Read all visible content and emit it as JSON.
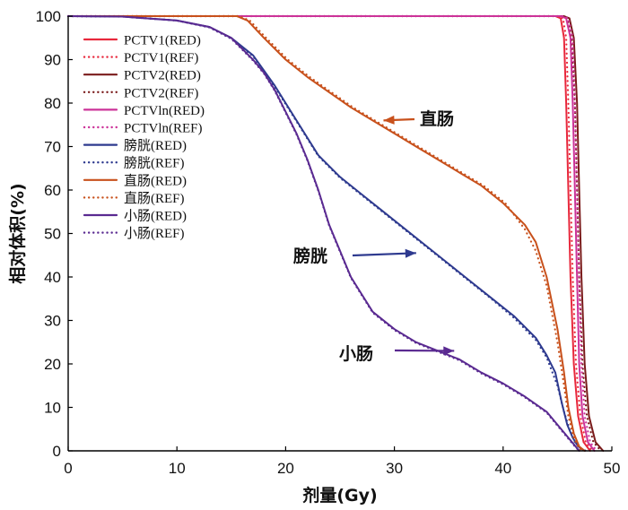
{
  "chart_data": {
    "type": "line",
    "xlabel": "剂量(Gy)",
    "ylabel": "相对体积(%)",
    "xlim": [
      0,
      50
    ],
    "ylim": [
      0,
      100
    ],
    "xticks": [
      0,
      10,
      20,
      30,
      40,
      50
    ],
    "yticks": [
      0,
      10,
      20,
      30,
      40,
      50,
      60,
      70,
      80,
      90,
      100
    ],
    "grid": false,
    "legend_position": "top-left",
    "series": [
      {
        "name": "PCTV1(RED)",
        "color": "#e8283c",
        "dash": "solid",
        "points": [
          [
            0,
            100
          ],
          [
            44.8,
            100
          ],
          [
            45.3,
            99.5
          ],
          [
            45.6,
            95
          ],
          [
            45.8,
            80
          ],
          [
            46.0,
            60
          ],
          [
            46.2,
            40
          ],
          [
            46.5,
            20
          ],
          [
            46.9,
            8
          ],
          [
            47.4,
            2
          ],
          [
            48.0,
            0
          ]
        ]
      },
      {
        "name": "PCTV1(REF)",
        "color": "#e8283c",
        "dash": "dotted",
        "points": [
          [
            0,
            100
          ],
          [
            45.0,
            100
          ],
          [
            45.5,
            99.5
          ],
          [
            45.8,
            95
          ],
          [
            46.0,
            80
          ],
          [
            46.2,
            60
          ],
          [
            46.4,
            40
          ],
          [
            46.7,
            20
          ],
          [
            47.1,
            8
          ],
          [
            47.6,
            2
          ],
          [
            48.2,
            0
          ]
        ]
      },
      {
        "name": "PCTV2(RED)",
        "color": "#7a1b1b",
        "dash": "solid",
        "points": [
          [
            0,
            100
          ],
          [
            45.6,
            100
          ],
          [
            46.1,
            99.5
          ],
          [
            46.5,
            95
          ],
          [
            46.8,
            80
          ],
          [
            47.0,
            60
          ],
          [
            47.2,
            40
          ],
          [
            47.5,
            20
          ],
          [
            47.9,
            8
          ],
          [
            48.5,
            2
          ],
          [
            49.2,
            0
          ]
        ]
      },
      {
        "name": "PCTV2(REF)",
        "color": "#7a1b1b",
        "dash": "dotted",
        "points": [
          [
            0,
            100
          ],
          [
            45.4,
            100
          ],
          [
            45.9,
            99.5
          ],
          [
            46.3,
            95
          ],
          [
            46.6,
            80
          ],
          [
            46.8,
            60
          ],
          [
            47.0,
            40
          ],
          [
            47.3,
            20
          ],
          [
            47.7,
            8
          ],
          [
            48.3,
            2
          ],
          [
            49.0,
            0
          ]
        ]
      },
      {
        "name": "PCTVln(RED)",
        "color": "#cc3399",
        "dash": "solid",
        "points": [
          [
            0,
            100
          ],
          [
            45.3,
            100
          ],
          [
            45.8,
            99.5
          ],
          [
            46.2,
            95
          ],
          [
            46.4,
            80
          ],
          [
            46.6,
            60
          ],
          [
            46.8,
            40
          ],
          [
            47.0,
            20
          ],
          [
            47.3,
            8
          ],
          [
            47.8,
            2
          ],
          [
            48.4,
            0
          ]
        ]
      },
      {
        "name": "PCTVln(REF)",
        "color": "#cc3399",
        "dash": "dotted",
        "points": [
          [
            0,
            100
          ],
          [
            45.5,
            100
          ],
          [
            46.0,
            99.5
          ],
          [
            46.4,
            95
          ],
          [
            46.6,
            80
          ],
          [
            46.8,
            60
          ],
          [
            47.0,
            40
          ],
          [
            47.2,
            20
          ],
          [
            47.5,
            8
          ],
          [
            48.0,
            2
          ],
          [
            48.6,
            0
          ]
        ]
      },
      {
        "name": "膀胱(RED)",
        "color": "#2e3a8f",
        "dash": "solid",
        "points": [
          [
            0,
            100
          ],
          [
            5,
            99.9
          ],
          [
            10,
            99
          ],
          [
            13,
            97.5
          ],
          [
            15,
            95
          ],
          [
            17,
            91
          ],
          [
            19,
            84
          ],
          [
            21,
            76
          ],
          [
            23,
            68
          ],
          [
            25,
            63
          ],
          [
            27,
            59
          ],
          [
            29,
            55
          ],
          [
            31,
            51
          ],
          [
            33,
            47
          ],
          [
            35,
            43
          ],
          [
            37,
            39
          ],
          [
            39,
            35
          ],
          [
            41,
            31
          ],
          [
            43,
            26
          ],
          [
            44,
            22
          ],
          [
            44.8,
            18
          ],
          [
            45.4,
            11
          ],
          [
            45.9,
            6
          ],
          [
            46.4,
            3
          ],
          [
            46.9,
            1
          ],
          [
            47.5,
            0
          ]
        ]
      },
      {
        "name": "膀胱(REF)",
        "color": "#2e3a8f",
        "dash": "dotted",
        "points": [
          [
            0,
            100
          ],
          [
            5,
            99.9
          ],
          [
            10,
            99
          ],
          [
            13,
            97.4
          ],
          [
            15,
            94.8
          ],
          [
            17,
            90.8
          ],
          [
            19,
            83.7
          ],
          [
            21,
            75.8
          ],
          [
            23,
            67.8
          ],
          [
            25,
            62.8
          ],
          [
            27,
            58.8
          ],
          [
            29,
            54.8
          ],
          [
            31,
            50.8
          ],
          [
            33,
            46.8
          ],
          [
            35,
            42.8
          ],
          [
            37,
            38.8
          ],
          [
            39,
            34.8
          ],
          [
            41,
            30.6
          ],
          [
            43,
            25.5
          ],
          [
            44,
            21.5
          ],
          [
            45,
            15
          ],
          [
            45.6,
            9
          ],
          [
            46.1,
            5
          ],
          [
            46.6,
            2
          ],
          [
            47.1,
            0.6
          ],
          [
            47.6,
            0
          ]
        ]
      },
      {
        "name": "直肠(RED)",
        "color": "#c8511c",
        "dash": "solid",
        "points": [
          [
            0,
            100
          ],
          [
            15.5,
            100
          ],
          [
            16.5,
            99
          ],
          [
            18,
            95
          ],
          [
            20,
            90
          ],
          [
            22,
            86
          ],
          [
            24,
            82.5
          ],
          [
            26,
            79
          ],
          [
            28,
            76
          ],
          [
            30,
            73
          ],
          [
            32,
            70
          ],
          [
            34,
            67
          ],
          [
            36,
            64
          ],
          [
            38,
            61
          ],
          [
            40,
            57
          ],
          [
            42,
            52
          ],
          [
            43,
            48
          ],
          [
            44,
            40
          ],
          [
            45,
            28
          ],
          [
            45.6,
            18
          ],
          [
            46,
            10
          ],
          [
            46.5,
            4
          ],
          [
            47,
            1
          ],
          [
            47.5,
            0
          ]
        ]
      },
      {
        "name": "直肠(REF)",
        "color": "#c8511c",
        "dash": "dotted",
        "points": [
          [
            0,
            100
          ],
          [
            15.7,
            100
          ],
          [
            16.7,
            99
          ],
          [
            18.2,
            95
          ],
          [
            20.2,
            90
          ],
          [
            22.2,
            86
          ],
          [
            24.2,
            82.5
          ],
          [
            26.2,
            79
          ],
          [
            28.2,
            76
          ],
          [
            30.2,
            73
          ],
          [
            32.2,
            70
          ],
          [
            34.2,
            67
          ],
          [
            36.2,
            64
          ],
          [
            38.2,
            61
          ],
          [
            40.2,
            57
          ],
          [
            42,
            51
          ],
          [
            43,
            46
          ],
          [
            44,
            38
          ],
          [
            45,
            25
          ],
          [
            45.6,
            15
          ],
          [
            46,
            8
          ],
          [
            46.5,
            3
          ],
          [
            47,
            0.5
          ],
          [
            47.4,
            0
          ]
        ]
      },
      {
        "name": "小肠(RED)",
        "color": "#5a2a91",
        "dash": "solid",
        "points": [
          [
            0,
            100
          ],
          [
            5,
            99.9
          ],
          [
            10,
            99
          ],
          [
            13,
            97.5
          ],
          [
            15,
            95
          ],
          [
            17,
            90
          ],
          [
            18,
            87
          ],
          [
            19,
            83
          ],
          [
            20,
            78
          ],
          [
            21,
            73
          ],
          [
            22,
            67
          ],
          [
            23,
            60
          ],
          [
            24,
            52
          ],
          [
            25,
            46
          ],
          [
            26,
            40
          ],
          [
            27,
            36
          ],
          [
            28,
            32
          ],
          [
            30,
            28
          ],
          [
            32,
            25
          ],
          [
            34,
            23
          ],
          [
            36,
            21
          ],
          [
            38,
            18
          ],
          [
            40,
            15.5
          ],
          [
            42,
            12.5
          ],
          [
            44,
            9
          ],
          [
            45,
            6
          ],
          [
            46,
            3
          ],
          [
            46.5,
            1.5
          ],
          [
            47,
            0
          ]
        ]
      },
      {
        "name": "小肠(REF)",
        "color": "#5a2a91",
        "dash": "dotted",
        "points": [
          [
            0,
            100
          ],
          [
            5,
            99.9
          ],
          [
            10,
            99
          ],
          [
            13,
            97.4
          ],
          [
            15,
            94.8
          ],
          [
            17,
            89.8
          ],
          [
            18,
            86.8
          ],
          [
            19,
            82.8
          ],
          [
            20,
            77.8
          ],
          [
            21,
            72.8
          ],
          [
            22,
            66.8
          ],
          [
            23,
            59.8
          ],
          [
            24,
            51.8
          ],
          [
            25,
            45.8
          ],
          [
            26,
            39.8
          ],
          [
            27,
            35.8
          ],
          [
            28,
            31.8
          ],
          [
            30,
            27.8
          ],
          [
            32,
            24.8
          ],
          [
            34,
            22.8
          ],
          [
            36,
            20.8
          ],
          [
            38,
            17.8
          ],
          [
            40,
            15.3
          ],
          [
            42,
            12.3
          ],
          [
            44,
            8.8
          ],
          [
            45,
            5.8
          ],
          [
            46,
            2.8
          ],
          [
            46.5,
            1.3
          ],
          [
            47,
            0
          ]
        ]
      }
    ],
    "annotations": [
      {
        "text": "直肠",
        "target": [
          29,
          76
        ],
        "arrow_color": "#c8511c"
      },
      {
        "text": "膀胱",
        "target": [
          32,
          45.5
        ],
        "arrow_color": "#2e3a8f"
      },
      {
        "text": "小肠",
        "target": [
          35.5,
          23
        ],
        "arrow_color": "#5a2a91"
      }
    ]
  }
}
